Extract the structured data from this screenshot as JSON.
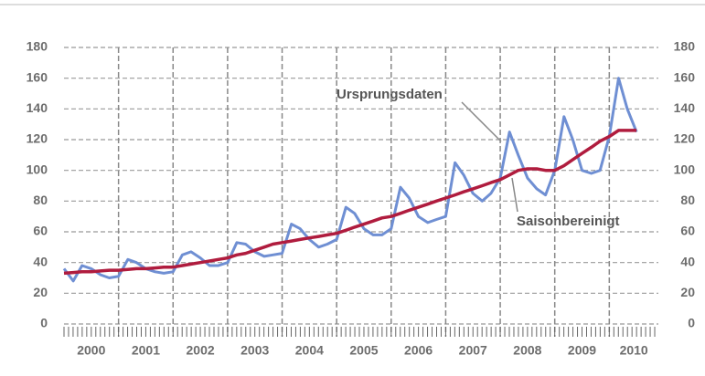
{
  "chart_data": {
    "type": "line",
    "x": [
      2000,
      2000.17,
      2000.33,
      2000.5,
      2000.67,
      2000.83,
      2001,
      2001.17,
      2001.33,
      2001.5,
      2001.67,
      2001.83,
      2002,
      2002.17,
      2002.33,
      2002.5,
      2002.67,
      2002.83,
      2003,
      2003.17,
      2003.33,
      2003.5,
      2003.67,
      2003.83,
      2004,
      2004.17,
      2004.33,
      2004.5,
      2004.67,
      2004.83,
      2005,
      2005.17,
      2005.33,
      2005.5,
      2005.67,
      2005.83,
      2006,
      2006.17,
      2006.33,
      2006.5,
      2006.67,
      2006.83,
      2007,
      2007.17,
      2007.33,
      2007.5,
      2007.67,
      2007.83,
      2008,
      2008.17,
      2008.33,
      2008.5,
      2008.67,
      2008.83,
      2009,
      2009.17,
      2009.33,
      2009.5,
      2009.67,
      2009.83,
      2010,
      2010.17,
      2010.33,
      2010.5
    ],
    "series": [
      {
        "name": "Ursprungsdaten",
        "color": "#6f8fd3",
        "values": [
          36,
          28,
          38,
          36,
          32,
          30,
          31,
          42,
          40,
          36,
          34,
          33,
          34,
          45,
          47,
          43,
          38,
          38,
          40,
          53,
          52,
          47,
          44,
          45,
          46,
          65,
          62,
          55,
          50,
          52,
          55,
          76,
          72,
          62,
          58,
          58,
          62,
          89,
          82,
          70,
          66,
          68,
          70,
          105,
          97,
          85,
          80,
          85,
          95,
          125,
          110,
          95,
          88,
          84,
          100,
          135,
          120,
          100,
          98,
          100,
          122,
          160,
          140,
          125
        ]
      },
      {
        "name": "Saisonbereinigt",
        "color": "#b01c3e",
        "values": [
          33,
          33.5,
          34,
          34,
          34.5,
          35,
          35,
          35.5,
          36,
          36,
          36.5,
          37,
          37,
          38,
          39,
          40,
          41,
          42,
          43,
          45,
          46,
          48,
          50,
          52,
          53,
          54,
          55,
          56,
          57,
          58,
          59,
          61,
          63,
          65,
          67,
          69,
          70,
          72,
          74,
          76,
          78,
          80,
          82,
          84,
          86,
          88,
          90,
          92,
          94,
          97,
          100,
          101,
          101,
          100,
          100,
          103,
          107,
          111,
          115,
          119,
          122,
          126,
          126,
          126
        ]
      }
    ],
    "xlim": [
      2000,
      2010.9
    ],
    "xticks": [
      {
        "value": 2000.5,
        "label": "2000"
      },
      {
        "value": 2001.5,
        "label": "2001"
      },
      {
        "value": 2002.5,
        "label": "2002"
      },
      {
        "value": 2003.5,
        "label": "2003"
      },
      {
        "value": 2004.5,
        "label": "2004"
      },
      {
        "value": 2005.5,
        "label": "2005"
      },
      {
        "value": 2006.5,
        "label": "2006"
      },
      {
        "value": 2007.5,
        "label": "2007"
      },
      {
        "value": 2008.5,
        "label": "2008"
      },
      {
        "value": 2009.5,
        "label": "2009"
      },
      {
        "value": 2010.45,
        "label": "2010"
      }
    ],
    "xgrid": [
      2001,
      2002,
      2003,
      2004,
      2005,
      2006,
      2007,
      2008,
      2009,
      2010
    ],
    "ylim": [
      0,
      180
    ],
    "yticks": [
      0,
      20,
      40,
      60,
      80,
      100,
      120,
      140,
      160,
      180
    ],
    "y2lim": [
      0,
      180
    ],
    "y2ticks": [
      0,
      20,
      40,
      60,
      80,
      100,
      120,
      140,
      160,
      180
    ],
    "grid": true
  }
}
